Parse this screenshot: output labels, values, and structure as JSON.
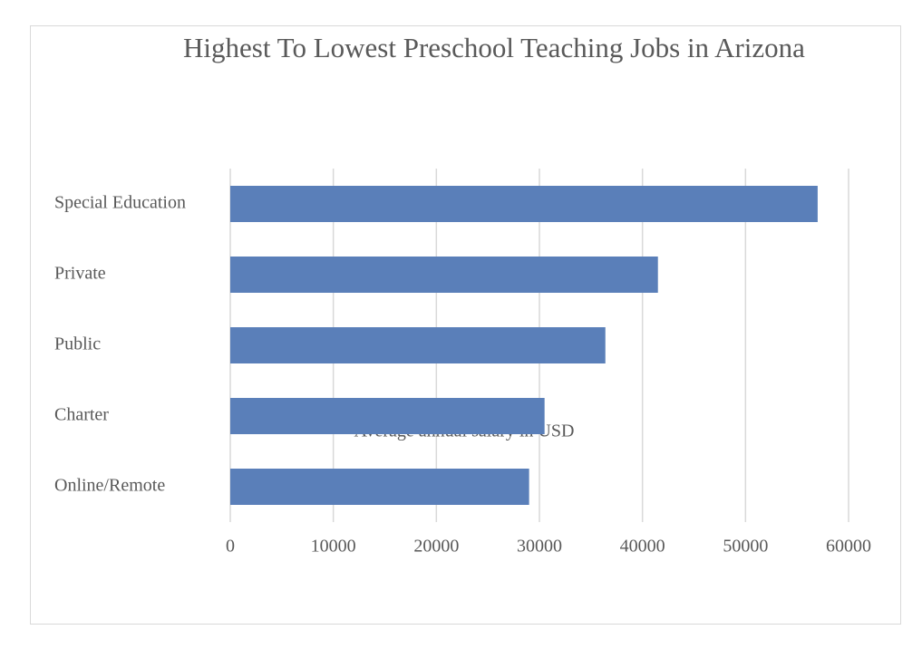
{
  "chart_data": {
    "type": "bar",
    "orientation": "horizontal",
    "title": "Highest To Lowest Preschool Teaching Jobs in Arizona",
    "xlabel": "Average annual salary in USD",
    "categories": [
      "Special Education",
      "Private",
      "Public",
      "Charter",
      "Online/Remote"
    ],
    "values": [
      57000,
      41500,
      36400,
      30500,
      29000
    ],
    "color": "#5a7fb9",
    "xlim": [
      0,
      60000
    ],
    "xticks": [
      0,
      10000,
      20000,
      30000,
      40000,
      50000,
      60000
    ],
    "grid": true
  }
}
